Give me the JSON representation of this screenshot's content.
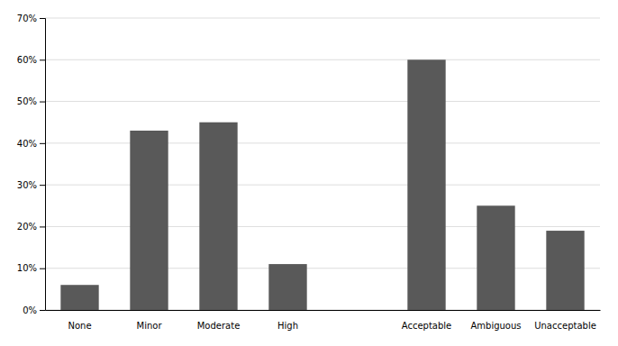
{
  "chart_data": {
    "type": "bar",
    "categories": [
      "None",
      "Minor",
      "Moderate",
      "High",
      null,
      "Acceptable",
      "Ambiguous",
      "Unacceptable"
    ],
    "values": [
      0.06,
      0.43,
      0.45,
      0.11,
      null,
      0.6,
      0.25,
      0.19
    ],
    "color": "#595959",
    "ylim": [
      0,
      0.7
    ],
    "yticks": [
      {
        "value": 0.0,
        "label": "0%"
      },
      {
        "value": 0.1,
        "label": "10%"
      },
      {
        "value": 0.2,
        "label": "20%"
      },
      {
        "value": 0.3,
        "label": "30%"
      },
      {
        "value": 0.4,
        "label": "40%"
      },
      {
        "value": 0.5,
        "label": "50%"
      },
      {
        "value": 0.6,
        "label": "60%"
      },
      {
        "value": 0.7,
        "label": "70%"
      }
    ],
    "grid": true
  }
}
